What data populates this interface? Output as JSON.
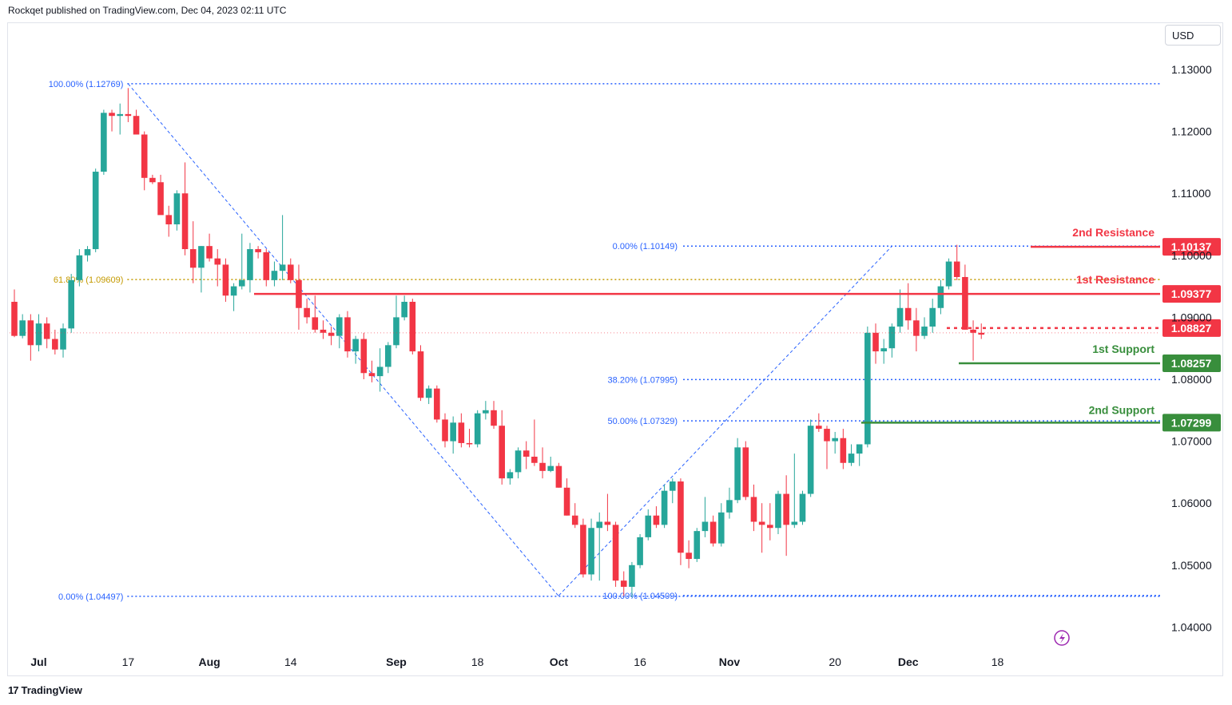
{
  "header": {
    "publisher": "Rockqet published on TradingView.com, Dec 04, 2023 02:11 UTC"
  },
  "toolbar": {
    "currency": "USD"
  },
  "footer": {
    "brand": "TradingView",
    "brand_mark": "17"
  },
  "colors": {
    "bull": "#26a69a",
    "bear": "#f23645",
    "fib": "#2962ff",
    "fib618": "#c49a00",
    "resistance": "#f23645",
    "support": "#388e3c",
    "grid": "#ffffff"
  },
  "chart_data": {
    "type": "candlestick",
    "ylim": [
      1.035,
      1.135
    ],
    "y_ticks": [
      "1.13000",
      "1.12000",
      "1.11000",
      "1.10000",
      "1.09000",
      "1.08000",
      "1.07000",
      "1.06000",
      "1.05000",
      "1.04000"
    ],
    "y_tick_values": [
      1.13,
      1.12,
      1.11,
      1.1,
      1.09,
      1.08,
      1.07,
      1.06,
      1.05,
      1.04
    ],
    "x_ticks": [
      {
        "label": "Jul",
        "bar": 3,
        "bold": true
      },
      {
        "label": "17",
        "bar": 14,
        "bold": false
      },
      {
        "label": "Aug",
        "bar": 24,
        "bold": true
      },
      {
        "label": "14",
        "bar": 34,
        "bold": false
      },
      {
        "label": "Sep",
        "bar": 47,
        "bold": true
      },
      {
        "label": "18",
        "bar": 57,
        "bold": false
      },
      {
        "label": "Oct",
        "bar": 67,
        "bold": true
      },
      {
        "label": "16",
        "bar": 77,
        "bold": false
      },
      {
        "label": "Nov",
        "bar": 88,
        "bold": true
      },
      {
        "label": "20",
        "bar": 101,
        "bold": false
      },
      {
        "label": "Dec",
        "bar": 110,
        "bold": true
      },
      {
        "label": "18",
        "bar": 121,
        "bold": false
      }
    ],
    "candles": [
      [
        1.0925,
        1.0945,
        1.0868,
        1.087
      ],
      [
        1.087,
        1.0905,
        1.0866,
        1.0895
      ],
      [
        1.0895,
        1.0905,
        1.083,
        1.0855
      ],
      [
        1.0855,
        1.0905,
        1.0845,
        1.089
      ],
      [
        1.089,
        1.09,
        1.085,
        1.0865
      ],
      [
        1.0865,
        1.088,
        1.084,
        1.0848
      ],
      [
        1.0848,
        1.089,
        1.0835,
        1.0882
      ],
      [
        1.0882,
        1.097,
        1.0875,
        1.096
      ],
      [
        1.096,
        1.101,
        1.095,
        1.1
      ],
      [
        1.1,
        1.1015,
        1.099,
        1.101
      ],
      [
        1.101,
        1.114,
        1.1005,
        1.1135
      ],
      [
        1.1135,
        1.1235,
        1.113,
        1.123
      ],
      [
        1.123,
        1.1235,
        1.12,
        1.1225
      ],
      [
        1.1225,
        1.1245,
        1.1195,
        1.1228
      ],
      [
        1.1228,
        1.127,
        1.1215,
        1.1225
      ],
      [
        1.1225,
        1.1235,
        1.1195,
        1.1195
      ],
      [
        1.1195,
        1.12,
        1.1105,
        1.1125
      ],
      [
        1.1125,
        1.113,
        1.1115,
        1.1118
      ],
      [
        1.1118,
        1.113,
        1.107,
        1.1065
      ],
      [
        1.1065,
        1.108,
        1.103,
        1.105
      ],
      [
        1.105,
        1.1105,
        1.104,
        1.11
      ],
      [
        1.11,
        1.115,
        1.1,
        1.101
      ],
      [
        1.101,
        1.1055,
        1.0955,
        1.098
      ],
      [
        1.098,
        1.1015,
        1.094,
        1.1015
      ],
      [
        1.1015,
        1.1035,
        1.099,
        1.0995
      ],
      [
        1.0995,
        1.101,
        1.095,
        1.0985
      ],
      [
        1.0985,
        1.0995,
        1.0925,
        1.0935
      ],
      [
        1.0935,
        1.0955,
        1.091,
        1.095
      ],
      [
        1.095,
        1.1035,
        1.0945,
        1.096
      ],
      [
        1.096,
        1.102,
        1.094,
        1.101
      ],
      [
        1.101,
        1.1015,
        1.0995,
        1.1005
      ],
      [
        1.1005,
        1.101,
        1.095,
        1.096
      ],
      [
        1.096,
        1.099,
        1.095,
        1.0975
      ],
      [
        1.0975,
        1.1065,
        1.096,
        1.0985
      ],
      [
        1.0985,
        1.0995,
        1.0955,
        1.096
      ],
      [
        1.096,
        1.0985,
        1.088,
        1.0915
      ],
      [
        1.0915,
        1.093,
        1.089,
        1.09
      ],
      [
        1.09,
        1.0935,
        1.0875,
        1.088
      ],
      [
        1.088,
        1.0895,
        1.0865,
        1.0875
      ],
      [
        1.0875,
        1.0885,
        1.0855,
        1.087
      ],
      [
        1.087,
        1.0905,
        1.085,
        1.09
      ],
      [
        1.09,
        1.091,
        1.0835,
        1.0845
      ],
      [
        1.0845,
        1.087,
        1.0825,
        1.0865
      ],
      [
        1.0865,
        1.0875,
        1.08,
        1.081
      ],
      [
        1.081,
        1.083,
        1.0795,
        1.0805
      ],
      [
        1.0805,
        1.085,
        1.078,
        1.082
      ],
      [
        1.082,
        1.086,
        1.081,
        1.0855
      ],
      [
        1.0855,
        1.0935,
        1.085,
        1.09
      ],
      [
        1.09,
        1.0935,
        1.0895,
        1.0925
      ],
      [
        1.0925,
        1.093,
        1.084,
        1.0845
      ],
      [
        1.0845,
        1.0855,
        1.0765,
        1.077
      ],
      [
        1.077,
        1.079,
        1.076,
        1.0785
      ],
      [
        1.0785,
        1.079,
        1.073,
        1.0735
      ],
      [
        1.0735,
        1.0745,
        1.069,
        1.07
      ],
      [
        1.07,
        1.074,
        1.068,
        1.073
      ],
      [
        1.073,
        1.0745,
        1.069,
        1.0697
      ],
      [
        1.0697,
        1.072,
        1.069,
        1.0695
      ],
      [
        1.0695,
        1.075,
        1.069,
        1.0745
      ],
      [
        1.0745,
        1.0765,
        1.0735,
        1.075
      ],
      [
        1.075,
        1.0765,
        1.072,
        1.0725
      ],
      [
        1.0725,
        1.075,
        1.063,
        1.064
      ],
      [
        1.064,
        1.0655,
        1.063,
        1.065
      ],
      [
        1.065,
        1.069,
        1.064,
        1.0685
      ],
      [
        1.0685,
        1.07,
        1.0655,
        1.0675
      ],
      [
        1.0675,
        1.0735,
        1.066,
        1.0665
      ],
      [
        1.0665,
        1.069,
        1.064,
        1.0652
      ],
      [
        1.0652,
        1.0675,
        1.065,
        1.066
      ],
      [
        1.066,
        1.0665,
        1.0625,
        1.0625
      ],
      [
        1.0625,
        1.064,
        1.058,
        1.058
      ],
      [
        1.058,
        1.06,
        1.056,
        1.0565
      ],
      [
        1.0565,
        1.0575,
        1.048,
        1.0485
      ],
      [
        1.0485,
        1.0575,
        1.0475,
        1.056
      ],
      [
        1.056,
        1.0585,
        1.0475,
        1.057
      ],
      [
        1.057,
        1.0615,
        1.0555,
        1.0565
      ],
      [
        1.0565,
        1.057,
        1.0465,
        1.0475
      ],
      [
        1.0475,
        1.049,
        1.045,
        1.0465
      ],
      [
        1.0465,
        1.0505,
        1.0448,
        1.05
      ],
      [
        1.05,
        1.055,
        1.0495,
        1.0545
      ],
      [
        1.0545,
        1.059,
        1.054,
        1.058
      ],
      [
        1.058,
        1.0595,
        1.056,
        1.0565
      ],
      [
        1.0565,
        1.063,
        1.056,
        1.062
      ],
      [
        1.062,
        1.064,
        1.06,
        1.0635
      ],
      [
        1.0635,
        1.064,
        1.05,
        1.052
      ],
      [
        1.052,
        1.054,
        1.0495,
        1.051
      ],
      [
        1.051,
        1.056,
        1.0505,
        1.0555
      ],
      [
        1.0555,
        1.061,
        1.0545,
        1.057
      ],
      [
        1.057,
        1.058,
        1.053,
        1.0535
      ],
      [
        1.0535,
        1.06,
        1.053,
        1.0585
      ],
      [
        1.0585,
        1.0625,
        1.0575,
        1.0605
      ],
      [
        1.0605,
        1.0705,
        1.06,
        1.069
      ],
      [
        1.069,
        1.07,
        1.0605,
        1.061
      ],
      [
        1.061,
        1.063,
        1.0555,
        1.057
      ],
      [
        1.057,
        1.06,
        1.052,
        1.0565
      ],
      [
        1.0565,
        1.06,
        1.054,
        1.056
      ],
      [
        1.056,
        1.062,
        1.055,
        1.0615
      ],
      [
        1.0615,
        1.0645,
        1.0515,
        1.0565
      ],
      [
        1.0565,
        1.068,
        1.056,
        1.057
      ],
      [
        1.057,
        1.062,
        1.0565,
        1.0615
      ],
      [
        1.0615,
        1.0735,
        1.061,
        1.0725
      ],
      [
        1.0725,
        1.0745,
        1.0715,
        1.072
      ],
      [
        1.072,
        1.0725,
        1.0655,
        1.07
      ],
      [
        1.07,
        1.0715,
        1.068,
        1.0705
      ],
      [
        1.0705,
        1.072,
        1.0655,
        1.0665
      ],
      [
        1.0665,
        1.0695,
        1.066,
        1.068
      ],
      [
        1.068,
        1.069,
        1.066,
        1.0695
      ],
      [
        1.0695,
        1.0885,
        1.069,
        1.0875
      ],
      [
        1.0875,
        1.089,
        1.0825,
        1.0845
      ],
      [
        1.0845,
        1.0865,
        1.0825,
        1.085
      ],
      [
        1.085,
        1.089,
        1.0835,
        1.0885
      ],
      [
        1.0885,
        1.0945,
        1.0875,
        1.0915
      ],
      [
        1.0915,
        1.0955,
        1.088,
        1.0895
      ],
      [
        1.0895,
        1.0915,
        1.0845,
        1.087
      ],
      [
        1.087,
        1.09,
        1.0865,
        1.0885
      ],
      [
        1.0885,
        1.093,
        1.0875,
        1.0915
      ],
      [
        1.0915,
        1.096,
        1.0905,
        1.095
      ],
      [
        1.095,
        1.0995,
        1.0945,
        1.099
      ],
      [
        1.099,
        1.1017,
        1.096,
        1.0965
      ],
      [
        1.0965,
        1.0985,
        1.088,
        1.088
      ],
      [
        1.088,
        1.0895,
        1.083,
        1.0875
      ],
      [
        1.0875,
        1.089,
        1.0865,
        1.0872
      ]
    ],
    "levels": [
      {
        "name": "2nd Resistance",
        "value": 1.10137,
        "tag": "1.10137",
        "kind": "resistance"
      },
      {
        "name": "1st Resistance",
        "value": 1.09377,
        "tag": "1.09377",
        "kind": "resistance"
      },
      {
        "name": "",
        "value": 1.08827,
        "tag": "1.08827",
        "kind": "current"
      },
      {
        "name": "1st Support",
        "value": 1.08257,
        "tag": "1.08257",
        "kind": "support"
      },
      {
        "name": "2nd Support",
        "value": 1.07299,
        "tag": "1.07299",
        "kind": "support"
      }
    ],
    "fib_down": {
      "from": {
        "bar": 14,
        "price": 1.12769
      },
      "to": {
        "bar": 67,
        "price": 1.04497
      },
      "levels": [
        {
          "label": "100.00% (1.12769)",
          "value": 1.12769
        },
        {
          "label": "61.80% (1.09609)",
          "value": 1.09609
        },
        {
          "label": "0.00% (1.04497)",
          "value": 1.04497
        }
      ]
    },
    "fib_up": {
      "from": {
        "bar": 67,
        "price": 1.04509
      },
      "to": {
        "bar": 108,
        "price": 1.10149
      },
      "levels": [
        {
          "label": "0.00% (1.10149)",
          "value": 1.10149
        },
        {
          "label": "38.20% (1.07995)",
          "value": 1.07995
        },
        {
          "label": "50.00% (1.07329)",
          "value": 1.07329
        },
        {
          "label": "100.00% (1.04509)",
          "value": 1.04509
        }
      ]
    }
  }
}
